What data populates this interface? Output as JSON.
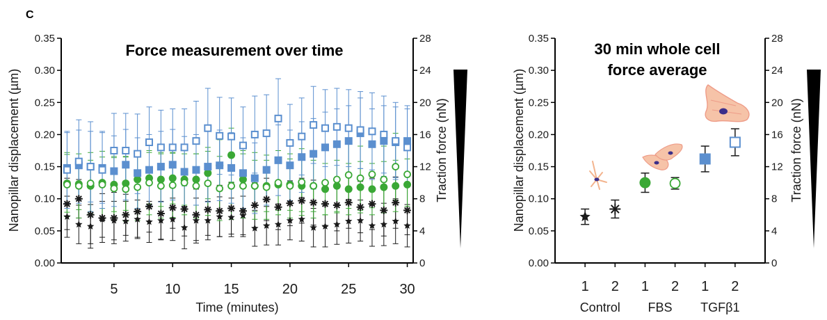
{
  "panel_label": "C",
  "chart_data": [
    {
      "type": "scatter",
      "title": "Force measurement over time",
      "xlabel": "Time (minutes)",
      "ylabel": "Nanopillar displacement (µm)",
      "y2label": "Traction force (nN)",
      "xlim": [
        0.5,
        30.5
      ],
      "ylim": [
        0,
        0.35
      ],
      "y2lim": [
        0,
        28
      ],
      "xticks": [
        "5",
        "10",
        "15",
        "20",
        "25",
        "30"
      ],
      "yticks": [
        "0.00",
        "0.05",
        "0.10",
        "0.15",
        "0.20",
        "0.25",
        "0.30",
        "0.35"
      ],
      "y2ticks": [
        "0",
        "4",
        "8",
        "12",
        "16",
        "20",
        "24",
        "28"
      ],
      "series": [
        {
          "marker": "star-filled",
          "color": "#1a1a1a",
          "x": [
            1,
            2,
            3,
            4,
            5,
            6,
            7,
            8,
            9,
            10,
            11,
            12,
            13,
            14,
            15,
            16,
            17,
            18,
            19,
            20,
            21,
            22,
            23,
            24,
            25,
            26,
            27,
            28,
            29,
            30
          ],
          "y": [
            0.072,
            0.06,
            0.057,
            0.068,
            0.066,
            0.065,
            0.068,
            0.064,
            0.066,
            0.068,
            0.055,
            0.066,
            0.066,
            0.072,
            0.071,
            0.074,
            0.054,
            0.058,
            0.06,
            0.066,
            0.068,
            0.055,
            0.057,
            0.06,
            0.065,
            0.066,
            0.058,
            0.06,
            0.065,
            0.058
          ],
          "err": [
            0.032,
            0.03,
            0.034,
            0.028,
            0.03,
            0.031,
            0.03,
            0.032,
            0.03,
            0.033,
            0.033,
            0.035,
            0.03,
            0.031,
            0.03,
            0.03,
            0.028,
            0.03,
            0.032,
            0.03,
            0.034,
            0.03,
            0.032,
            0.031,
            0.034,
            0.032,
            0.032,
            0.033,
            0.035,
            0.033
          ]
        },
        {
          "marker": "asterisk",
          "color": "#1a1a1a",
          "x": [
            1,
            2,
            3,
            4,
            5,
            6,
            7,
            8,
            9,
            10,
            11,
            12,
            13,
            14,
            15,
            16,
            17,
            18,
            19,
            20,
            21,
            22,
            23,
            24,
            25,
            26,
            27,
            28,
            29,
            30
          ],
          "y": [
            0.092,
            0.1,
            0.075,
            0.07,
            0.07,
            0.075,
            0.08,
            0.088,
            0.077,
            0.086,
            0.084,
            0.075,
            0.083,
            0.081,
            0.085,
            0.081,
            0.09,
            0.099,
            0.087,
            0.093,
            0.097,
            0.094,
            0.092,
            0.09,
            0.094,
            0.087,
            0.092,
            0.082,
            0.094,
            0.082
          ],
          "err": [
            0.04,
            0.03,
            0.045,
            0.038,
            0.04,
            0.032,
            0.04,
            0.04,
            0.04,
            0.032,
            0.042,
            0.04,
            0.04,
            0.04,
            0.04,
            0.04,
            0.035,
            0.033,
            0.035,
            0.035,
            0.035,
            0.035,
            0.035,
            0.04,
            0.04,
            0.04,
            0.04,
            0.04,
            0.04,
            0.038
          ]
        },
        {
          "marker": "circle-filled",
          "color": "#3aa835",
          "x": [
            1,
            2,
            3,
            4,
            5,
            6,
            7,
            8,
            9,
            10,
            11,
            12,
            13,
            14,
            15,
            16,
            17,
            18,
            19,
            20,
            21,
            22,
            23,
            24,
            25,
            26,
            27,
            28,
            29,
            30
          ],
          "y": [
            0.124,
            0.123,
            0.12,
            0.125,
            0.122,
            0.124,
            0.13,
            0.132,
            0.13,
            0.132,
            0.13,
            0.13,
            0.14,
            0.152,
            0.168,
            0.13,
            0.12,
            0.12,
            0.122,
            0.122,
            0.12,
            0.12,
            0.115,
            0.12,
            0.115,
            0.118,
            0.115,
            0.118,
            0.12,
            0.122
          ],
          "err": [
            0.045,
            0.04,
            0.04,
            0.04,
            0.042,
            0.042,
            0.045,
            0.04,
            0.042,
            0.04,
            0.04,
            0.04,
            0.04,
            0.04,
            0.042,
            0.045,
            0.04,
            0.04,
            0.04,
            0.04,
            0.04,
            0.04,
            0.04,
            0.04,
            0.04,
            0.04,
            0.04,
            0.04,
            0.04,
            0.04
          ]
        },
        {
          "marker": "circle-open",
          "color": "#3aa835",
          "x": [
            1,
            2,
            3,
            4,
            5,
            6,
            7,
            8,
            9,
            10,
            11,
            12,
            13,
            14,
            15,
            16,
            17,
            18,
            19,
            20,
            21,
            22,
            23,
            24,
            25,
            26,
            27,
            28,
            29,
            30
          ],
          "y": [
            0.122,
            0.12,
            0.124,
            0.122,
            0.116,
            0.115,
            0.118,
            0.125,
            0.12,
            0.121,
            0.125,
            0.12,
            0.124,
            0.116,
            0.12,
            0.12,
            0.12,
            0.118,
            0.125,
            0.12,
            0.126,
            0.12,
            0.125,
            0.13,
            0.137,
            0.132,
            0.138,
            0.13,
            0.15,
            0.138
          ],
          "err": [
            0.05,
            0.05,
            0.048,
            0.052,
            0.05,
            0.05,
            0.052,
            0.05,
            0.05,
            0.05,
            0.05,
            0.05,
            0.05,
            0.05,
            0.052,
            0.05,
            0.052,
            0.05,
            0.05,
            0.05,
            0.052,
            0.05,
            0.05,
            0.052,
            0.052,
            0.05,
            0.052,
            0.052,
            0.052,
            0.05
          ]
        },
        {
          "marker": "square-filled",
          "color": "#5b8fcf",
          "x": [
            1,
            2,
            3,
            4,
            5,
            6,
            7,
            8,
            9,
            10,
            11,
            12,
            13,
            14,
            15,
            16,
            17,
            18,
            19,
            20,
            21,
            22,
            23,
            24,
            25,
            26,
            27,
            28,
            29,
            30
          ],
          "y": [
            0.148,
            0.152,
            0.15,
            0.148,
            0.143,
            0.153,
            0.14,
            0.145,
            0.15,
            0.153,
            0.142,
            0.145,
            0.15,
            0.152,
            0.148,
            0.14,
            0.132,
            0.145,
            0.16,
            0.152,
            0.165,
            0.17,
            0.18,
            0.185,
            0.19,
            0.202,
            0.185,
            0.19,
            0.188,
            0.19
          ],
          "err": [
            0.055,
            0.055,
            0.055,
            0.055,
            0.055,
            0.055,
            0.055,
            0.055,
            0.055,
            0.055,
            0.055,
            0.055,
            0.055,
            0.055,
            0.055,
            0.055,
            0.055,
            0.055,
            0.055,
            0.055,
            0.055,
            0.055,
            0.055,
            0.055,
            0.055,
            0.055,
            0.055,
            0.055,
            0.055,
            0.055
          ]
        },
        {
          "marker": "square-open",
          "color": "#5b8fcf",
          "x": [
            1,
            2,
            3,
            4,
            5,
            6,
            7,
            8,
            9,
            10,
            11,
            12,
            13,
            14,
            15,
            16,
            17,
            18,
            19,
            20,
            21,
            22,
            23,
            24,
            25,
            26,
            27,
            28,
            29,
            30
          ],
          "y": [
            0.145,
            0.158,
            0.15,
            0.145,
            0.175,
            0.175,
            0.17,
            0.188,
            0.18,
            0.18,
            0.18,
            0.19,
            0.21,
            0.198,
            0.197,
            0.183,
            0.2,
            0.202,
            0.225,
            0.187,
            0.197,
            0.215,
            0.21,
            0.212,
            0.21,
            0.207,
            0.205,
            0.2,
            0.19,
            0.18
          ],
          "err": [
            0.06,
            0.065,
            0.07,
            0.06,
            0.058,
            0.058,
            0.062,
            0.055,
            0.058,
            0.06,
            0.06,
            0.062,
            0.062,
            0.06,
            0.06,
            0.06,
            0.06,
            0.06,
            0.062,
            0.06,
            0.06,
            0.06,
            0.06,
            0.06,
            0.06,
            0.06,
            0.06,
            0.06,
            0.06,
            0.06
          ]
        }
      ]
    },
    {
      "type": "scatter",
      "title": "30 min whole cell force average",
      "title_lines": [
        "30 min whole cell",
        "force average"
      ],
      "xlabel": "",
      "ylabel": "Nanopillar displacement (µm)",
      "y2label": "Traction force (nN)",
      "ylim": [
        0,
        0.35
      ],
      "y2lim": [
        0,
        28
      ],
      "yticks": [
        "0.00",
        "0.05",
        "0.10",
        "0.15",
        "0.20",
        "0.25",
        "0.30",
        "0.35"
      ],
      "y2ticks": [
        "0",
        "4",
        "8",
        "12",
        "16",
        "20",
        "24",
        "28"
      ],
      "categories": [
        "1",
        "2",
        "1",
        "2",
        "1",
        "2"
      ],
      "groups": [
        "Control",
        "FBS",
        "TGFβ1"
      ],
      "points": [
        {
          "marker": "star-filled",
          "color": "#1a1a1a",
          "y": 0.072,
          "err": 0.012
        },
        {
          "marker": "asterisk",
          "color": "#1a1a1a",
          "y": 0.084,
          "err": 0.014
        },
        {
          "marker": "circle-filled",
          "color": "#3aa835",
          "y": 0.125,
          "err": 0.015
        },
        {
          "marker": "circle-open",
          "color": "#3aa835",
          "y": 0.124,
          "err": 0.009
        },
        {
          "marker": "square-filled",
          "color": "#5b8fcf",
          "y": 0.162,
          "err": 0.02
        },
        {
          "marker": "square-open",
          "color": "#5b8fcf",
          "y": 0.188,
          "err": 0.021
        }
      ]
    }
  ]
}
